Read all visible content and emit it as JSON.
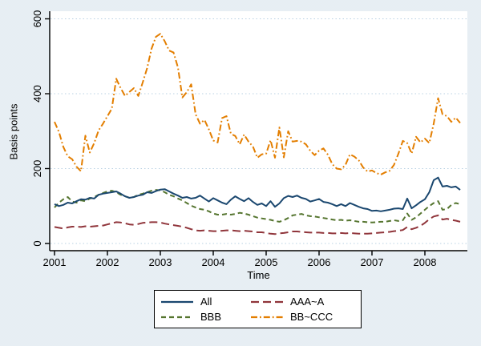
{
  "chart_data": {
    "type": "line",
    "title": "",
    "xlabel": "Time",
    "ylabel": "Basis points",
    "x_start": 2001.0,
    "x_step_months": 1,
    "xlim": [
      2000.9,
      2008.85
    ],
    "ylim": [
      0,
      620
    ],
    "xticks": [
      2001,
      2002,
      2003,
      2004,
      2005,
      2006,
      2007,
      2008
    ],
    "xtick_labels": [
      "2001",
      "2002",
      "2003",
      "2004",
      "2005",
      "2006",
      "2007",
      "2008"
    ],
    "yticks": [
      0,
      200,
      400,
      600
    ],
    "ytick_labels": [
      "0",
      "200",
      "400",
      "600"
    ],
    "grid": true,
    "grid_color": "#b9d1e3",
    "plot_background": "#ffffff",
    "page_background": "#eaf2f8",
    "axis_color": "#000000",
    "legend_position": "bottom-center",
    "series": [
      {
        "name": "All",
        "color": "#1a476f",
        "style": "solid",
        "values": [
          105,
          100,
          103,
          109,
          107,
          113,
          118,
          117,
          122,
          120,
          130,
          133,
          135,
          137,
          139,
          133,
          126,
          122,
          124,
          128,
          130,
          137,
          135,
          140,
          144,
          145,
          139,
          133,
          128,
          122,
          124,
          120,
          122,
          128,
          120,
          112,
          121,
          115,
          109,
          105,
          117,
          126,
          119,
          113,
          121,
          111,
          103,
          107,
          100,
          113,
          98,
          107,
          121,
          127,
          124,
          128,
          122,
          119,
          112,
          115,
          119,
          111,
          109,
          105,
          100,
          105,
          100,
          108,
          103,
          98,
          94,
          92,
          87,
          88,
          86,
          88,
          90,
          93,
          94,
          92,
          120,
          94,
          102,
          111,
          118,
          137,
          169,
          176,
          152,
          154,
          150,
          152,
          143
        ]
      },
      {
        "name": "AAA~A",
        "color": "#90353b",
        "style": "longdash",
        "values": [
          44,
          42,
          40,
          43,
          45,
          45,
          44,
          46,
          45,
          46,
          47,
          48,
          51,
          54,
          57,
          56,
          54,
          51,
          50,
          52,
          55,
          56,
          57,
          57,
          56,
          53,
          51,
          49,
          47,
          45,
          42,
          38,
          35,
          34,
          35,
          34,
          33,
          33,
          34,
          35,
          35,
          34,
          33,
          34,
          33,
          32,
          30,
          30,
          28,
          26,
          25,
          27,
          28,
          30,
          32,
          32,
          31,
          30,
          29,
          29,
          29,
          28,
          28,
          27,
          27,
          28,
          27,
          28,
          27,
          26,
          26,
          26,
          27,
          28,
          29,
          30,
          31,
          33,
          34,
          36,
          44,
          38,
          42,
          47,
          55,
          65,
          72,
          75,
          64,
          66,
          63,
          61,
          58
        ]
      },
      {
        "name": "BBB",
        "color": "#55752f",
        "style": "dash",
        "values": [
          96,
          109,
          118,
          124,
          112,
          109,
          115,
          113,
          120,
          124,
          130,
          135,
          139,
          141,
          137,
          130,
          126,
          122,
          124,
          130,
          133,
          137,
          141,
          143,
          142,
          137,
          130,
          126,
          120,
          115,
          108,
          101,
          96,
          92,
          90,
          86,
          80,
          77,
          77,
          79,
          77,
          79,
          82,
          80,
          77,
          73,
          69,
          67,
          65,
          63,
          60,
          58,
          62,
          68,
          75,
          77,
          79,
          75,
          73,
          72,
          70,
          68,
          66,
          64,
          62,
          63,
          61,
          62,
          60,
          58,
          58,
          57,
          56,
          57,
          58,
          58,
          60,
          62,
          60,
          62,
          80,
          63,
          70,
          80,
          90,
          100,
          108,
          113,
          90,
          92,
          103,
          108,
          105
        ]
      },
      {
        "name": "BB~CCC",
        "color": "#e37e00",
        "style": "dashdot",
        "values": [
          325,
          298,
          258,
          233,
          225,
          205,
          193,
          288,
          243,
          268,
          302,
          320,
          340,
          360,
          440,
          415,
          394,
          405,
          415,
          394,
          430,
          468,
          520,
          552,
          560,
          540,
          515,
          510,
          470,
          390,
          404,
          425,
          345,
          320,
          330,
          305,
          275,
          270,
          335,
          340,
          293,
          287,
          265,
          291,
          272,
          259,
          229,
          238,
          240,
          276,
          229,
          310,
          230,
          300,
          272,
          274,
          272,
          265,
          248,
          236,
          248,
          254,
          237,
          212,
          200,
          198,
          210,
          238,
          232,
          222,
          203,
          192,
          195,
          188,
          184,
          190,
          194,
          210,
          240,
          274,
          268,
          240,
          285,
          270,
          280,
          268,
          320,
          388,
          345,
          340,
          325,
          336,
          322
        ]
      }
    ]
  }
}
